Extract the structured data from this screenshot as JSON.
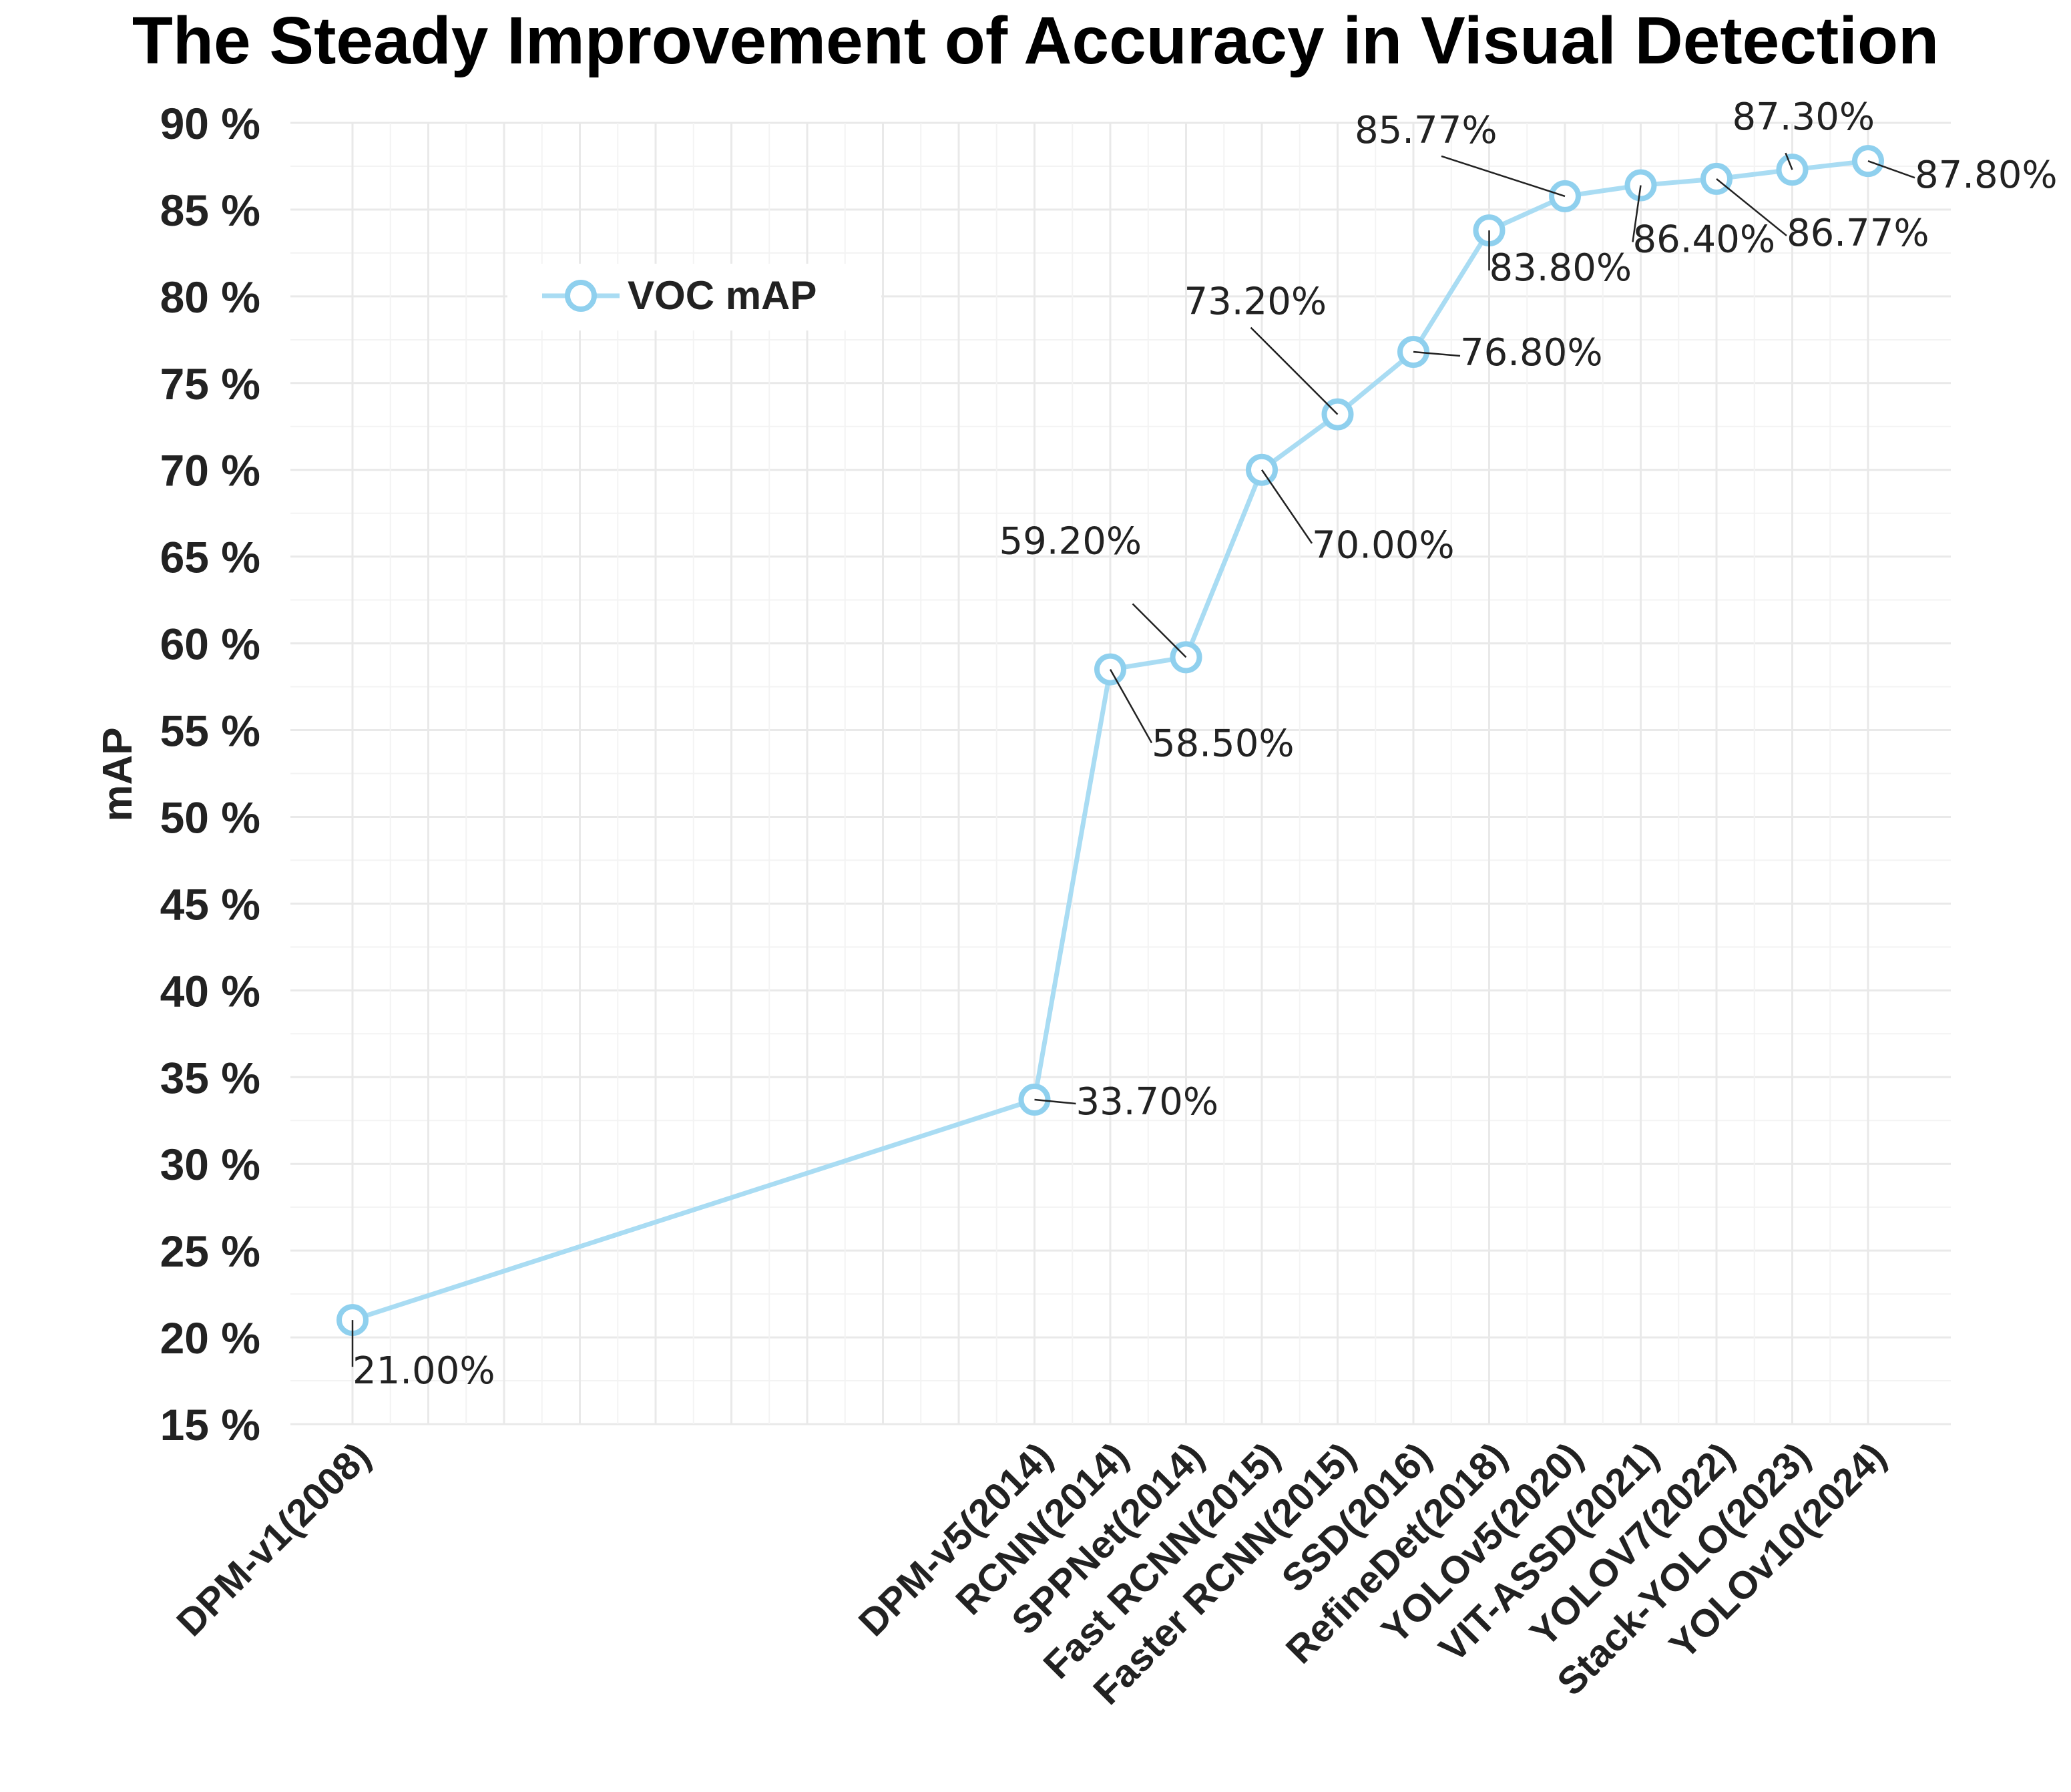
{
  "chart_data": {
    "type": "line",
    "title": "The Steady Improvement of Accuracy in Visual Detection",
    "ylabel": "mAP",
    "xlabel": "",
    "ylim": [
      15,
      90
    ],
    "yticks": [
      15,
      20,
      25,
      30,
      35,
      40,
      45,
      50,
      55,
      60,
      65,
      70,
      75,
      80,
      85,
      90
    ],
    "ytick_suffix": " %",
    "grid": true,
    "legend_position": "upper-left",
    "series": [
      {
        "name": "VOC mAP",
        "color": "#a9dcf3",
        "marker_color": "#8fd0ee",
        "points": [
          {
            "category": "DPM-v1(2008)",
            "slot": 0,
            "value": 21.0,
            "label": "21.00%"
          },
          {
            "category": "DPM-v5(2014)",
            "slot": 9,
            "value": 33.7,
            "label": "33.70%"
          },
          {
            "category": "RCNN(2014)",
            "slot": 10,
            "value": 58.5,
            "label": "58.50%"
          },
          {
            "category": "SPPNet(2014)",
            "slot": 11,
            "value": 59.2,
            "label": "59.20%"
          },
          {
            "category": "Fast RCNN(2015)",
            "slot": 12,
            "value": 70.0,
            "label": "70.00%"
          },
          {
            "category": "Faster RCNN(2015)",
            "slot": 13,
            "value": 73.2,
            "label": "73.20%"
          },
          {
            "category": "SSD(2016)",
            "slot": 14,
            "value": 76.8,
            "label": "76.80%"
          },
          {
            "category": "RefineDet(2018)",
            "slot": 15,
            "value": 83.8,
            "label": "83.80%"
          },
          {
            "category": "YOLOv5(2020)",
            "slot": 16,
            "value": 85.77,
            "label": "85.77%"
          },
          {
            "category": "VIT-ASSD(2021)",
            "slot": 17,
            "value": 86.4,
            "label": "86.40%"
          },
          {
            "category": "YOLOV7(2022)",
            "slot": 18,
            "value": 86.77,
            "label": "86.77%"
          },
          {
            "category": "Stack-YOLO(2023)",
            "slot": 19,
            "value": 87.3,
            "label": "87.30%"
          },
          {
            "category": "YOLOv10(2024)",
            "slot": 20,
            "value": 87.8,
            "label": "87.80%"
          }
        ]
      }
    ]
  }
}
